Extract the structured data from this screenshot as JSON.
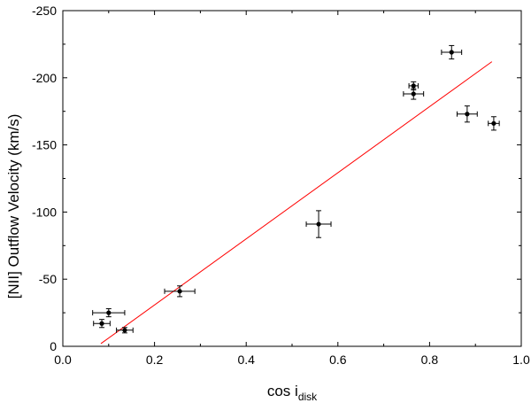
{
  "chart_data": {
    "type": "scatter",
    "xlabel": "cos i",
    "xlabel_subscript": "disk",
    "ylabel": "[NII] Outflow Velocity  (km/s)",
    "xlim": [
      0.0,
      1.0
    ],
    "ylim": [
      0,
      -250
    ],
    "y_axis_inverted": true,
    "grid": false,
    "legend": "none",
    "x_ticks": [
      0.0,
      0.2,
      0.4,
      0.6,
      0.8,
      1.0
    ],
    "x_tick_labels": [
      "0.0",
      "0.2",
      "0.4",
      "0.6",
      "0.8",
      "1.0"
    ],
    "y_ticks": [
      0,
      -50,
      -100,
      -150,
      -200,
      -250
    ],
    "y_tick_labels": [
      "0",
      "-50",
      "-100",
      "-150",
      "-200",
      "-250"
    ],
    "marker_color": "#000000",
    "fit_color": "#ff0000",
    "points": [
      {
        "x": 0.085,
        "y": -17,
        "xerr": 0.018,
        "yerr": 3
      },
      {
        "x": 0.1,
        "y": -25,
        "xerr": 0.035,
        "yerr": 3
      },
      {
        "x": 0.135,
        "y": -12,
        "xerr": 0.018,
        "yerr": 2
      },
      {
        "x": 0.255,
        "y": -41,
        "xerr": 0.033,
        "yerr": 4
      },
      {
        "x": 0.558,
        "y": -91,
        "xerr": 0.027,
        "yerr": 10
      },
      {
        "x": 0.765,
        "y": -194,
        "xerr": 0.01,
        "yerr": 3
      },
      {
        "x": 0.765,
        "y": -188,
        "xerr": 0.022,
        "yerr": 4
      },
      {
        "x": 0.848,
        "y": -219,
        "xerr": 0.022,
        "yerr": 5
      },
      {
        "x": 0.882,
        "y": -173,
        "xerr": 0.022,
        "yerr": 6
      },
      {
        "x": 0.94,
        "y": -166,
        "xerr": 0.012,
        "yerr": 5
      }
    ],
    "fit_line": {
      "x": [
        0.083,
        0.936
      ],
      "y": [
        -2,
        -212
      ]
    }
  }
}
